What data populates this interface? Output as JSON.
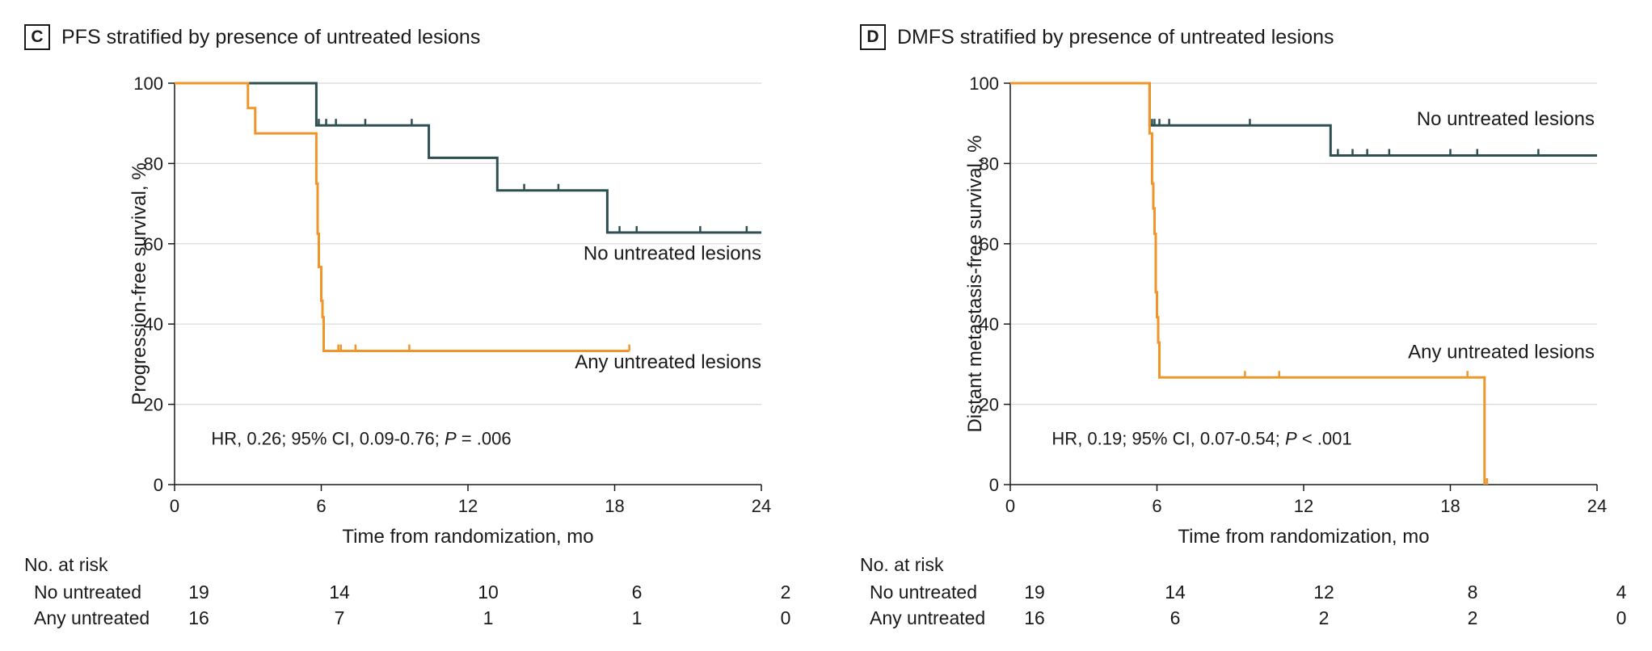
{
  "colors": {
    "no_untreated": "#2d4f52",
    "any_untreated": "#f0952a",
    "grid": "#d8d8d8",
    "axis": "#1a1a1a"
  },
  "panels": [
    {
      "letter": "C",
      "title": "PFS stratified by presence of untreated lesions",
      "hr_text": "HR, 0.26; 95% CI, 0.09-0.76; ",
      "p_label": "P",
      "p_value": " = .006",
      "at_risk_title": "No. at risk",
      "at_risk_rows": [
        {
          "label": "No untreated",
          "counts": [
            "19",
            "14",
            "10",
            "6",
            "2"
          ]
        },
        {
          "label": "Any untreated",
          "counts": [
            "16",
            "7",
            "1",
            "1",
            "0"
          ]
        }
      ]
    },
    {
      "letter": "D",
      "title": "DMFS stratified by presence of untreated lesions",
      "hr_text": "HR, 0.19; 95% CI, 0.07-0.54; ",
      "p_label": "P",
      "p_value": " < .001",
      "at_risk_title": "No. at risk",
      "at_risk_rows": [
        {
          "label": "No untreated",
          "counts": [
            "19",
            "14",
            "12",
            "8",
            "4"
          ]
        },
        {
          "label": "Any untreated",
          "counts": [
            "16",
            "6",
            "2",
            "2",
            "0"
          ]
        }
      ]
    }
  ],
  "chart_data": [
    {
      "type": "line",
      "title": "PFS stratified by presence of untreated lesions",
      "xlabel": "Time from randomization, mo",
      "ylabel": "Progression-free survival, %",
      "xlim": [
        0,
        24
      ],
      "ylim": [
        0,
        100
      ],
      "x_ticks": [
        0,
        6,
        12,
        18,
        24
      ],
      "y_ticks": [
        0,
        20,
        40,
        60,
        80,
        100
      ],
      "grid": "horizontal",
      "step": true,
      "series": [
        {
          "name": "No untreated lesions",
          "color": "#2d4f52",
          "x": [
            0,
            5.8,
            5.8,
            10.4,
            10.4,
            13.2,
            13.2,
            17.7,
            17.7,
            24
          ],
          "y": [
            100,
            100,
            89.5,
            89.5,
            81.4,
            81.4,
            73.3,
            73.3,
            62.8,
            62.8
          ],
          "censor_x": [
            5.9,
            6.2,
            6.6,
            7.8,
            9.7,
            14.3,
            15.7,
            18.2,
            18.9,
            21.5,
            23.4
          ],
          "censor_y": [
            89.5,
            89.5,
            89.5,
            89.5,
            89.5,
            73.3,
            73.3,
            62.8,
            62.8,
            62.8,
            62.8
          ]
        },
        {
          "name": "Any untreated lesions",
          "color": "#f0952a",
          "x": [
            0,
            3.0,
            3.0,
            3.3,
            3.3,
            5.8,
            5.8,
            5.85,
            5.85,
            5.9,
            5.9,
            6.0,
            6.0,
            6.05,
            6.05,
            6.1,
            6.1,
            18.6
          ],
          "y": [
            100,
            100,
            93.8,
            93.8,
            87.5,
            87.5,
            75,
            75,
            62.5,
            62.5,
            54.2,
            54.2,
            45.8,
            45.8,
            41.7,
            41.7,
            33.3,
            33.3
          ],
          "censor_x": [
            6.7,
            6.8,
            7.4,
            9.6,
            18.6
          ],
          "censor_y": [
            33.3,
            33.3,
            33.3,
            33.3,
            33.3
          ]
        }
      ],
      "annotations": [
        {
          "text": "No untreated lesions",
          "x": 24,
          "y": 56,
          "anchor": "end"
        },
        {
          "text": "Any untreated lesions",
          "x": 24,
          "y": 29,
          "anchor": "end"
        }
      ],
      "hr_anchor": {
        "x": 1.5,
        "y": 10
      }
    },
    {
      "type": "line",
      "title": "DMFS stratified by presence of untreated lesions",
      "xlabel": "Time from randomization, mo",
      "ylabel": "Distant metastasis-free survival, %",
      "xlim": [
        0,
        24
      ],
      "ylim": [
        0,
        100
      ],
      "x_ticks": [
        0,
        6,
        12,
        18,
        24
      ],
      "y_ticks": [
        0,
        20,
        40,
        60,
        80,
        100
      ],
      "grid": "horizontal",
      "step": true,
      "series": [
        {
          "name": "No untreated lesions",
          "color": "#2d4f52",
          "x": [
            0,
            5.7,
            5.7,
            13.1,
            13.1,
            24
          ],
          "y": [
            100,
            100,
            89.5,
            89.5,
            82,
            82
          ],
          "censor_x": [
            5.8,
            5.9,
            6.1,
            6.5,
            9.8,
            13.4,
            14.0,
            14.6,
            15.5,
            18.0,
            19.1,
            21.6
          ],
          "censor_y": [
            89.5,
            89.5,
            89.5,
            89.5,
            89.5,
            82,
            82,
            82,
            82,
            82,
            82,
            82
          ]
        },
        {
          "name": "Any untreated lesions",
          "color": "#f0952a",
          "x": [
            0,
            5.7,
            5.7,
            5.8,
            5.8,
            5.85,
            5.85,
            5.9,
            5.9,
            5.95,
            5.95,
            6.0,
            6.0,
            6.05,
            6.05,
            6.1,
            6.1,
            19.4,
            19.4
          ],
          "y": [
            100,
            100,
            87.5,
            87.5,
            75,
            75,
            68.8,
            68.8,
            62.5,
            62.5,
            47.9,
            47.9,
            41.7,
            41.7,
            35.4,
            35.4,
            26.7,
            26.7,
            0
          ],
          "censor_x": [
            9.6,
            11.0,
            18.7,
            19.5
          ],
          "censor_y": [
            26.7,
            26.7,
            26.7,
            0
          ]
        }
      ],
      "annotations": [
        {
          "text": "No untreated lesions",
          "x": 23.9,
          "y": 89.5,
          "anchor": "end"
        },
        {
          "text": "Any untreated lesions",
          "x": 23.9,
          "y": 31.5,
          "anchor": "end"
        }
      ],
      "hr_anchor": {
        "x": 1.7,
        "y": 10
      }
    }
  ]
}
